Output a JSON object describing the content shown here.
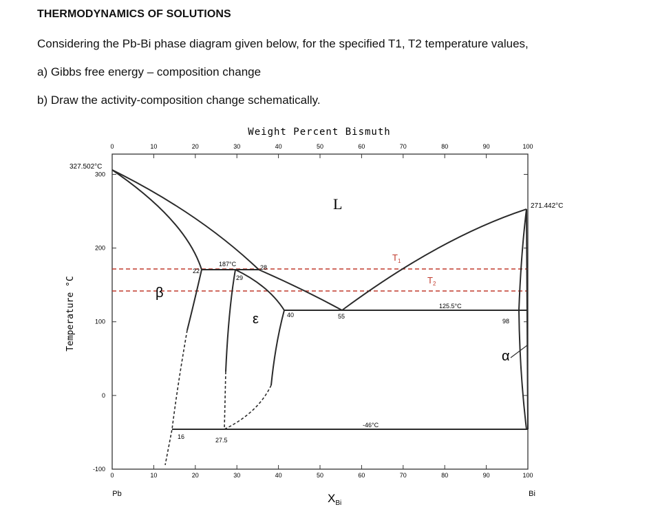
{
  "question": {
    "title": "THERMODYNAMICS OF SOLUTIONS",
    "intro": "Considering the Pb-Bi phase diagram given below, for the specified T1, T2 temperature values,",
    "part_a": "a) Gibbs free energy – composition change",
    "part_b": "b) Draw the activity-composition change schematically."
  },
  "diagram": {
    "top_axis_label": "Weight Percent Bismuth",
    "top_ticks": [
      "0",
      "10",
      "20",
      "30",
      "40",
      "50",
      "60",
      "70",
      "80",
      "90",
      "100"
    ],
    "bottom_ticks": [
      "0",
      "10",
      "20",
      "30",
      "40",
      "50",
      "60",
      "70",
      "80",
      "90",
      "100"
    ],
    "y_axis_label": "Temperature °C",
    "y_ticks": [
      "300",
      "200",
      "100",
      "0",
      "-100"
    ],
    "pb_label": "Pb",
    "bi_label": "Bi",
    "x_axis_label": "X",
    "x_axis_sub": "Bi",
    "pb_melting": "327.502°C",
    "bi_melting": "271.442°C",
    "phase_L": "L",
    "phase_beta": "β",
    "phase_epsilon": "ε",
    "phase_alpha": "α",
    "t1": "T",
    "t1_sub": "1",
    "t2": "T",
    "t2_sub": "2",
    "peritectic_temp": "187°C",
    "eutectic_temp": "125.5°C",
    "eutectoid_temp": "-46°C",
    "comp_22": "22",
    "comp_28": "28",
    "comp_29": "29",
    "comp_40": "40",
    "comp_55": "55",
    "comp_98": "98",
    "comp_16": "16",
    "comp_27_5": "27.5",
    "colors": {
      "temp_lines": "#c0392b",
      "curves": "#2a2a2a"
    }
  }
}
